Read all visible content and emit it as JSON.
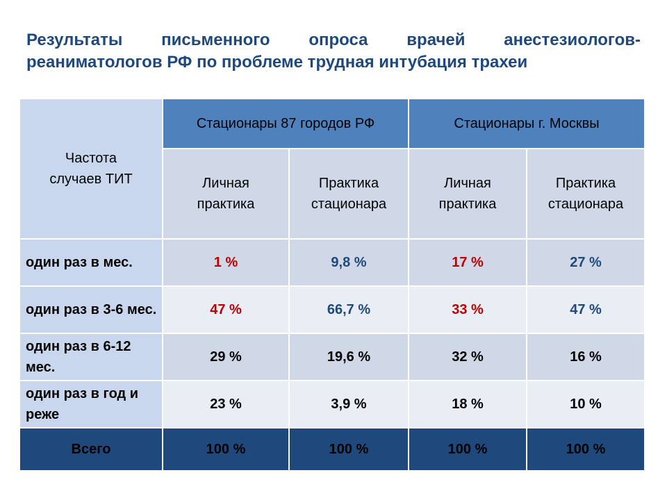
{
  "title": {
    "line1": "Результаты письменного опроса врачей анестезиологов-",
    "line2": "реаниматологов РФ по проблеме трудная интубация трахеи"
  },
  "table": {
    "corner_header": "Частота случаев ТИТ",
    "groups": [
      "Стационары 87 городов РФ",
      "Стационары г. Москвы"
    ],
    "subheaders": [
      "Личная практика",
      "Практика стационара",
      "Личная практика",
      "Практика стационара"
    ],
    "rows": [
      {
        "label": "один раз в мес.",
        "values": [
          "1 %",
          "9,8 %",
          "17 %",
          "27 %"
        ],
        "colors": [
          "#C00000",
          "#1F497D",
          "#C00000",
          "#1F497D"
        ]
      },
      {
        "label": "один раз в 3-6 мес.",
        "values": [
          "47 %",
          "66,7 %",
          "33 %",
          "47 %"
        ],
        "colors": [
          "#C00000",
          "#1F497D",
          "#C00000",
          "#1F497D"
        ]
      },
      {
        "label": "один раз в 6-12 мес.",
        "values": [
          "29 %",
          "19,6 %",
          "32 %",
          "16 %"
        ],
        "colors": [
          "#000000",
          "#000000",
          "#000000",
          "#000000"
        ]
      },
      {
        "label": "один раз в год и реже",
        "values": [
          "23 %",
          "3,9 %",
          "18 %",
          "10 %"
        ],
        "colors": [
          "#000000",
          "#000000",
          "#000000",
          "#000000"
        ]
      }
    ],
    "total": {
      "label": "Всего",
      "values": [
        "100 %",
        "100 %",
        "100 %",
        "100 %"
      ]
    }
  },
  "colors": {
    "title": "#1F497D",
    "group_header_bg": "#4F81BD",
    "total_bg": "#1F497D",
    "highlight_red": "#C00000",
    "highlight_blue": "#1F497D"
  }
}
